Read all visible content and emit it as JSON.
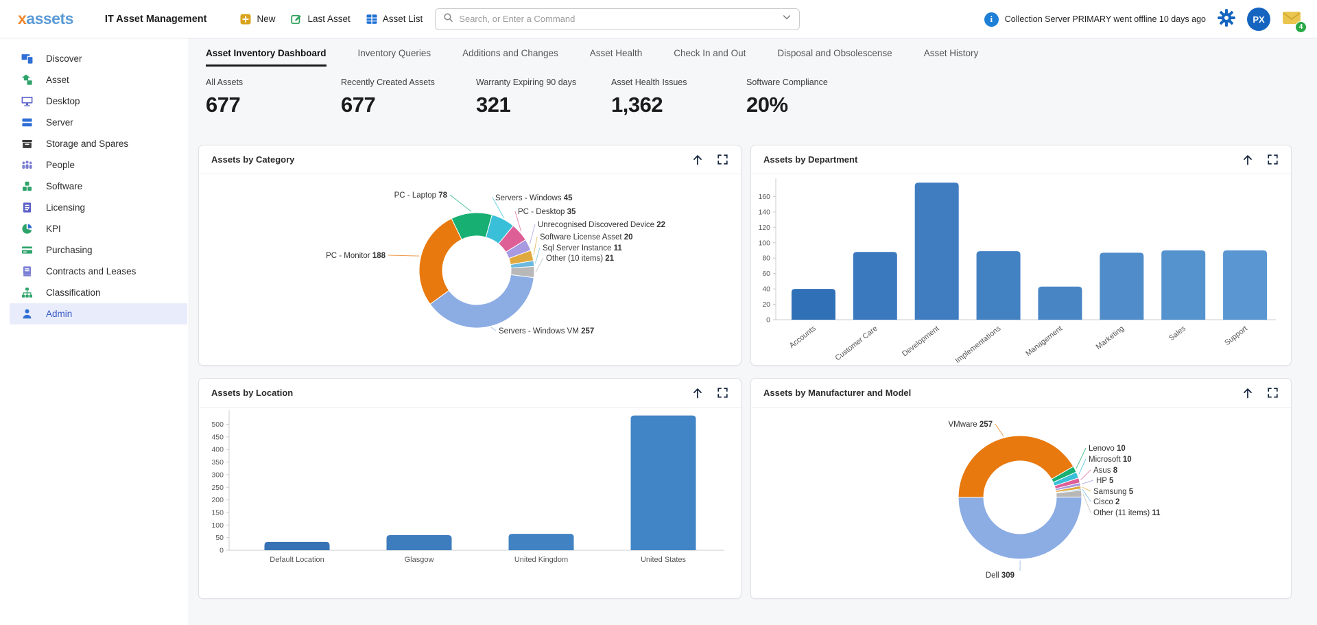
{
  "header": {
    "logo_x": "x",
    "logo_rest": "assets",
    "app_title": "IT Asset Management",
    "toolbar": {
      "new_label": "New",
      "last_asset_label": "Last Asset",
      "asset_list_label": "Asset List"
    },
    "search": {
      "placeholder": "Search, or Enter a Command"
    },
    "notification": "Collection Server PRIMARY went offline 10 days ago",
    "avatar_initials": "PX",
    "mail_badge": "4"
  },
  "colors": {
    "accent_blue": "#1c6fd4",
    "logo_x": "#f0862c",
    "logo_rest": "#5b9bd5",
    "new_icon": "#d9a41c",
    "last_asset_icon": "#2e9e5b",
    "asset_list_icon": "#1c6fd4",
    "info_icon": "#1d7fd6",
    "gear_icon": "#1565c0",
    "avatar_bg": "#1565c0",
    "mail_icon": "#eac54f",
    "badge_green": "#27a844",
    "active_item_bg": "#e9ecfb",
    "active_item_text": "#3a5bc7"
  },
  "sidebar": {
    "items": [
      {
        "label": "Discover",
        "icon": "discover-icon",
        "color": "#2f6fd6",
        "active": false
      },
      {
        "label": "Asset",
        "icon": "asset-icon",
        "color": "#2ea36a",
        "active": false
      },
      {
        "label": "Desktop",
        "icon": "desktop-icon",
        "color": "#5a5fc7",
        "active": false
      },
      {
        "label": "Server",
        "icon": "server-icon",
        "color": "#2f6fd6",
        "active": false
      },
      {
        "label": "Storage and Spares",
        "icon": "storage-icon",
        "color": "#3a3a3a",
        "active": false
      },
      {
        "label": "People",
        "icon": "people-icon",
        "color": "#7b7fd4",
        "active": false
      },
      {
        "label": "Software",
        "icon": "software-icon",
        "color": "#2ea36a",
        "active": false
      },
      {
        "label": "Licensing",
        "icon": "licensing-icon",
        "color": "#5a5fc7",
        "active": false
      },
      {
        "label": "KPI",
        "icon": "kpi-icon",
        "color": "#2ea36a",
        "active": false
      },
      {
        "label": "Purchasing",
        "icon": "purchasing-icon",
        "color": "#2ea36a",
        "active": false
      },
      {
        "label": "Contracts and Leases",
        "icon": "contracts-icon",
        "color": "#7b7fd4",
        "active": false
      },
      {
        "label": "Classification",
        "icon": "classification-icon",
        "color": "#2ea36a",
        "active": false
      },
      {
        "label": "Admin",
        "icon": "admin-icon",
        "color": "#2f6fd6",
        "active": true
      }
    ]
  },
  "tabs": [
    {
      "label": "Asset Inventory Dashboard",
      "active": true
    },
    {
      "label": "Inventory Queries",
      "active": false
    },
    {
      "label": "Additions and Changes",
      "active": false
    },
    {
      "label": "Asset Health",
      "active": false
    },
    {
      "label": "Check In and Out",
      "active": false
    },
    {
      "label": "Disposal and Obsolescense",
      "active": false
    },
    {
      "label": "Asset History",
      "active": false
    }
  ],
  "stats": [
    {
      "label": "All Assets",
      "value": "677"
    },
    {
      "label": "Recently Created Assets",
      "value": "677"
    },
    {
      "label": "Warranty Expiring 90 days",
      "value": "321"
    },
    {
      "label": "Asset Health Issues",
      "value": "1,362"
    },
    {
      "label": "Software Compliance",
      "value": "20%"
    }
  ],
  "cards": [
    {
      "title": "Assets by Category"
    },
    {
      "title": "Assets by Department"
    },
    {
      "title": "Assets by Location"
    },
    {
      "title": "Assets by Manufacturer and Model"
    }
  ],
  "chart_data": [
    {
      "type": "pie",
      "title": "Assets by Category",
      "donut": true,
      "start_angle": -26,
      "labels": [
        "PC - Laptop",
        "Servers - Windows",
        "PC - Desktop",
        "Unrecognised Discovered Device",
        "Software License Asset",
        "Sql Server Instance",
        "Other (10 items)",
        "Servers - Windows VM",
        "PC - Monitor"
      ],
      "values": [
        78,
        45,
        35,
        22,
        20,
        11,
        21,
        257,
        188
      ],
      "colors": [
        "#17af72",
        "#39c0d8",
        "#dd5f96",
        "#a79ae0",
        "#e0a93e",
        "#6cb9e0",
        "#b8b8b8",
        "#8cace4",
        "#e8790e"
      ],
      "total": 677
    },
    {
      "type": "bar",
      "title": "Assets by Department",
      "categories": [
        "Accounts",
        "Customer Care",
        "Development",
        "Implementations",
        "Management",
        "Marketing",
        "Sales",
        "Support"
      ],
      "values": [
        40,
        88,
        178,
        89,
        43,
        87,
        90,
        90
      ],
      "colors": [
        "#3070b7",
        "#3a79bd",
        "#3f7dc0",
        "#4281c2",
        "#4785c5",
        "#4f8cc9",
        "#5593cf",
        "#5a97d2"
      ],
      "ylim": [
        0,
        180
      ],
      "yticks": [
        0,
        20,
        40,
        60,
        80,
        100,
        120,
        140,
        160
      ],
      "xlabel": "",
      "ylabel": "",
      "grid": false
    },
    {
      "type": "bar",
      "title": "Assets by Location",
      "categories": [
        "Default Location",
        "Glasgow",
        "United Kingdom",
        "United States"
      ],
      "values": [
        33,
        60,
        65,
        535
      ],
      "colors": [
        "#3672b4",
        "#3d7cbd",
        "#4182c2",
        "#4285c6"
      ],
      "ylim": [
        0,
        545
      ],
      "yticks": [
        0,
        50,
        100,
        150,
        200,
        250,
        300,
        350,
        400,
        450,
        500
      ],
      "xlabel": "",
      "ylabel": "",
      "grid": false
    },
    {
      "type": "pie",
      "title": "Assets by Manufacturer and Model",
      "donut": true,
      "start_angle": -90,
      "labels": [
        "VMware",
        "Lenovo",
        "Microsoft",
        "Asus",
        "HP",
        "Samsung",
        "Cisco",
        "Other (11 items)",
        "Dell"
      ],
      "values": [
        257,
        10,
        10,
        8,
        5,
        5,
        2,
        11,
        309
      ],
      "colors": [
        "#e8790e",
        "#17af72",
        "#39c0d8",
        "#dd5f96",
        "#a79ae0",
        "#e0a93e",
        "#6cb9e0",
        "#b8b8b8",
        "#8cace4"
      ],
      "total": 617
    }
  ]
}
